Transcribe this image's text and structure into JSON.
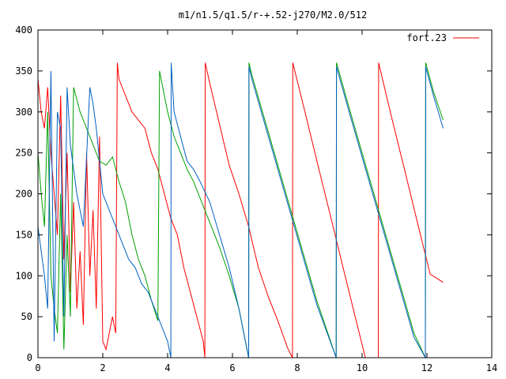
{
  "chart_data": {
    "type": "line",
    "title": "m1/n1.5/q1.5/r-+.52-j270/M2.0/512",
    "xlabel": "",
    "ylabel": "",
    "xlim": [
      0,
      14
    ],
    "ylim": [
      0,
      400
    ],
    "xticks": [
      0,
      2,
      4,
      6,
      8,
      10,
      12,
      14
    ],
    "yticks": [
      0,
      50,
      100,
      150,
      200,
      250,
      300,
      350,
      400
    ],
    "grid": false,
    "legend_position": "top-right",
    "series": [
      {
        "name": "fort.23",
        "color": "#ff0000",
        "points": [
          [
            0.0,
            340
          ],
          [
            0.1,
            300
          ],
          [
            0.2,
            280
          ],
          [
            0.3,
            330
          ],
          [
            0.4,
            250
          ],
          [
            0.5,
            200
          ],
          [
            0.6,
            150
          ],
          [
            0.7,
            320
          ],
          [
            0.8,
            120
          ],
          [
            0.9,
            250
          ],
          [
            1.0,
            80
          ],
          [
            1.1,
            190
          ],
          [
            1.2,
            60
          ],
          [
            1.3,
            130
          ],
          [
            1.4,
            40
          ],
          [
            1.5,
            250
          ],
          [
            1.6,
            100
          ],
          [
            1.7,
            180
          ],
          [
            1.8,
            60
          ],
          [
            1.9,
            270
          ],
          [
            2.0,
            20
          ],
          [
            2.1,
            10
          ],
          [
            2.2,
            30
          ],
          [
            2.3,
            50
          ],
          [
            2.4,
            30
          ],
          [
            2.45,
            360
          ],
          [
            2.5,
            340
          ],
          [
            2.7,
            320
          ],
          [
            2.9,
            300
          ],
          [
            3.1,
            290
          ],
          [
            3.3,
            280
          ],
          [
            3.5,
            250
          ],
          [
            3.7,
            230
          ],
          [
            3.9,
            200
          ],
          [
            4.1,
            170
          ],
          [
            4.3,
            150
          ],
          [
            4.5,
            110
          ],
          [
            4.7,
            80
          ],
          [
            4.9,
            50
          ],
          [
            5.1,
            20
          ],
          [
            5.15,
            0
          ],
          [
            5.16,
            360
          ],
          [
            5.3,
            335
          ],
          [
            5.6,
            285
          ],
          [
            5.9,
            235
          ],
          [
            6.2,
            200
          ],
          [
            6.5,
            160
          ],
          [
            6.8,
            110
          ],
          [
            7.1,
            75
          ],
          [
            7.4,
            45
          ],
          [
            7.7,
            12
          ],
          [
            7.85,
            0
          ],
          [
            7.86,
            360
          ],
          [
            8.2,
            306
          ],
          [
            8.6,
            241
          ],
          [
            9.0,
            177
          ],
          [
            9.4,
            112
          ],
          [
            9.8,
            48
          ],
          [
            10.1,
            0
          ],
          [
            10.5,
            0
          ],
          [
            10.51,
            360
          ],
          [
            10.9,
            295
          ],
          [
            11.3,
            231
          ],
          [
            11.7,
            166
          ],
          [
            12.1,
            102
          ],
          [
            12.5,
            92
          ]
        ]
      },
      {
        "name": "",
        "color": "#00a000",
        "points": [
          [
            0.0,
            250
          ],
          [
            0.1,
            200
          ],
          [
            0.2,
            160
          ],
          [
            0.3,
            300
          ],
          [
            0.4,
            100
          ],
          [
            0.5,
            60
          ],
          [
            0.6,
            30
          ],
          [
            0.7,
            200
          ],
          [
            0.8,
            10
          ],
          [
            0.9,
            150
          ],
          [
            1.0,
            50
          ],
          [
            1.1,
            330
          ],
          [
            1.3,
            300
          ],
          [
            1.5,
            280
          ],
          [
            1.7,
            260
          ],
          [
            1.9,
            240
          ],
          [
            2.1,
            235
          ],
          [
            2.3,
            245
          ],
          [
            2.5,
            215
          ],
          [
            2.7,
            190
          ],
          [
            2.9,
            150
          ],
          [
            3.1,
            120
          ],
          [
            3.3,
            100
          ],
          [
            3.5,
            70
          ],
          [
            3.7,
            45
          ],
          [
            3.75,
            350
          ],
          [
            3.8,
            340
          ],
          [
            3.9,
            320
          ],
          [
            4.0,
            300
          ],
          [
            4.2,
            270
          ],
          [
            4.4,
            250
          ],
          [
            4.6,
            230
          ],
          [
            4.8,
            215
          ],
          [
            5.0,
            195
          ],
          [
            5.3,
            165
          ],
          [
            5.6,
            135
          ],
          [
            5.9,
            100
          ],
          [
            6.2,
            60
          ],
          [
            6.5,
            0
          ],
          [
            6.51,
            360
          ],
          [
            6.6,
            345
          ],
          [
            7.0,
            290
          ],
          [
            7.4,
            235
          ],
          [
            7.8,
            180
          ],
          [
            8.2,
            125
          ],
          [
            8.6,
            70
          ],
          [
            9.2,
            0
          ],
          [
            9.21,
            360
          ],
          [
            9.6,
            305
          ],
          [
            10.0,
            250
          ],
          [
            10.4,
            195
          ],
          [
            10.8,
            140
          ],
          [
            11.2,
            85
          ],
          [
            11.6,
            30
          ],
          [
            11.95,
            0
          ],
          [
            11.96,
            360
          ],
          [
            12.2,
            325
          ],
          [
            12.5,
            290
          ]
        ]
      },
      {
        "name": "",
        "color": "#0060c0",
        "points": [
          [
            0.0,
            160
          ],
          [
            0.1,
            130
          ],
          [
            0.2,
            100
          ],
          [
            0.3,
            60
          ],
          [
            0.4,
            350
          ],
          [
            0.5,
            20
          ],
          [
            0.6,
            300
          ],
          [
            0.7,
            280
          ],
          [
            0.8,
            50
          ],
          [
            0.9,
            330
          ],
          [
            1.0,
            260
          ],
          [
            1.1,
            230
          ],
          [
            1.2,
            200
          ],
          [
            1.3,
            180
          ],
          [
            1.4,
            160
          ],
          [
            1.6,
            330
          ],
          [
            1.7,
            310
          ],
          [
            1.8,
            280
          ],
          [
            1.9,
            240
          ],
          [
            2.0,
            200
          ],
          [
            2.2,
            180
          ],
          [
            2.4,
            160
          ],
          [
            2.6,
            140
          ],
          [
            2.8,
            120
          ],
          [
            3.0,
            110
          ],
          [
            3.2,
            90
          ],
          [
            3.4,
            80
          ],
          [
            3.6,
            60
          ],
          [
            3.8,
            40
          ],
          [
            4.0,
            20
          ],
          [
            4.1,
            0
          ],
          [
            4.11,
            360
          ],
          [
            4.2,
            300
          ],
          [
            4.4,
            270
          ],
          [
            4.6,
            240
          ],
          [
            4.8,
            230
          ],
          [
            5.0,
            215
          ],
          [
            5.3,
            190
          ],
          [
            5.6,
            150
          ],
          [
            5.9,
            110
          ],
          [
            6.2,
            60
          ],
          [
            6.5,
            0
          ],
          [
            6.51,
            355
          ],
          [
            6.6,
            340
          ],
          [
            7.0,
            285
          ],
          [
            7.4,
            230
          ],
          [
            7.8,
            175
          ],
          [
            8.2,
            120
          ],
          [
            8.6,
            65
          ],
          [
            9.2,
            0
          ],
          [
            9.21,
            355
          ],
          [
            9.6,
            300
          ],
          [
            10.0,
            245
          ],
          [
            10.4,
            190
          ],
          [
            10.8,
            135
          ],
          [
            11.2,
            80
          ],
          [
            11.6,
            25
          ],
          [
            11.95,
            0
          ],
          [
            11.96,
            355
          ],
          [
            12.2,
            320
          ],
          [
            12.5,
            280
          ]
        ]
      }
    ]
  }
}
